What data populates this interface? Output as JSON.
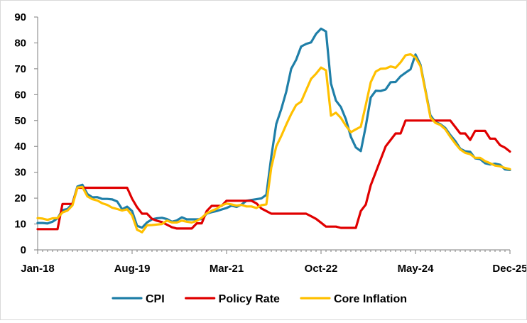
{
  "chart_data": {
    "type": "line",
    "title": "",
    "xlabel": "",
    "ylabel": "",
    "ylim": [
      0,
      90
    ],
    "yticks": [
      0,
      10,
      20,
      30,
      40,
      50,
      60,
      70,
      80,
      90
    ],
    "xlim": [
      "2018-01",
      "2025-12"
    ],
    "xtick_labels": [
      "Jan-18",
      "Aug-19",
      "Mar-21",
      "Oct-22",
      "May-24",
      "Dec-25"
    ],
    "grid": false,
    "legend_position": "bottom",
    "series": [
      {
        "name": "CPI",
        "color": "#1f7fa8",
        "points": [
          [
            "2018-01",
            10.4
          ],
          [
            "2018-02",
            10.4
          ],
          [
            "2018-03",
            10.2
          ],
          [
            "2018-04",
            10.9
          ],
          [
            "2018-05",
            12.2
          ],
          [
            "2018-06",
            15.4
          ],
          [
            "2018-07",
            15.8
          ],
          [
            "2018-08",
            17.9
          ],
          [
            "2018-09",
            24.5
          ],
          [
            "2018-10",
            25.2
          ],
          [
            "2018-11",
            21.6
          ],
          [
            "2018-12",
            20.3
          ],
          [
            "2019-01",
            20.4
          ],
          [
            "2019-02",
            19.7
          ],
          [
            "2019-03",
            19.7
          ],
          [
            "2019-04",
            19.5
          ],
          [
            "2019-05",
            18.7
          ],
          [
            "2019-06",
            15.7
          ],
          [
            "2019-07",
            16.7
          ],
          [
            "2019-08",
            15.0
          ],
          [
            "2019-09",
            9.3
          ],
          [
            "2019-10",
            8.6
          ],
          [
            "2019-11",
            10.6
          ],
          [
            "2019-12",
            11.8
          ],
          [
            "2020-01",
            12.2
          ],
          [
            "2020-02",
            12.4
          ],
          [
            "2020-03",
            11.9
          ],
          [
            "2020-04",
            10.9
          ],
          [
            "2020-05",
            11.4
          ],
          [
            "2020-06",
            12.6
          ],
          [
            "2020-07",
            11.8
          ],
          [
            "2020-08",
            11.8
          ],
          [
            "2020-09",
            11.8
          ],
          [
            "2020-10",
            11.9
          ],
          [
            "2020-11",
            14.0
          ],
          [
            "2020-12",
            14.6
          ],
          [
            "2021-01",
            15.0
          ],
          [
            "2021-02",
            15.6
          ],
          [
            "2021-03",
            16.2
          ],
          [
            "2021-04",
            17.1
          ],
          [
            "2021-05",
            16.6
          ],
          [
            "2021-06",
            17.5
          ],
          [
            "2021-07",
            19.0
          ],
          [
            "2021-08",
            19.3
          ],
          [
            "2021-09",
            19.6
          ],
          [
            "2021-10",
            19.9
          ],
          [
            "2021-11",
            21.3
          ],
          [
            "2021-12",
            36.1
          ],
          [
            "2022-01",
            48.7
          ],
          [
            "2022-02",
            54.4
          ],
          [
            "2022-03",
            61.1
          ],
          [
            "2022-04",
            70.0
          ],
          [
            "2022-05",
            73.5
          ],
          [
            "2022-06",
            78.6
          ],
          [
            "2022-07",
            79.6
          ],
          [
            "2022-08",
            80.2
          ],
          [
            "2022-09",
            83.5
          ],
          [
            "2022-10",
            85.5
          ],
          [
            "2022-11",
            84.4
          ],
          [
            "2022-12",
            64.3
          ],
          [
            "2023-01",
            57.7
          ],
          [
            "2023-02",
            55.2
          ],
          [
            "2023-03",
            50.5
          ],
          [
            "2023-04",
            43.7
          ],
          [
            "2023-05",
            39.6
          ],
          [
            "2023-06",
            38.2
          ],
          [
            "2023-07",
            47.8
          ],
          [
            "2023-08",
            58.9
          ],
          [
            "2023-09",
            61.5
          ],
          [
            "2023-10",
            61.4
          ],
          [
            "2023-11",
            62.0
          ],
          [
            "2023-12",
            64.8
          ],
          [
            "2024-01",
            64.9
          ],
          [
            "2024-02",
            67.1
          ],
          [
            "2024-03",
            68.5
          ],
          [
            "2024-04",
            69.8
          ],
          [
            "2024-05",
            75.5
          ],
          [
            "2024-06",
            71.6
          ],
          [
            "2024-07",
            61.8
          ],
          [
            "2024-08",
            52.0
          ],
          [
            "2024-09",
            49.4
          ],
          [
            "2024-10",
            48.6
          ],
          [
            "2024-11",
            47.1
          ],
          [
            "2024-12",
            44.4
          ],
          [
            "2025-01",
            42.1
          ],
          [
            "2025-02",
            39.1
          ],
          [
            "2025-03",
            38.1
          ],
          [
            "2025-04",
            37.9
          ],
          [
            "2025-05",
            35.4
          ],
          [
            "2025-06",
            35.1
          ],
          [
            "2025-07",
            33.5
          ],
          [
            "2025-08",
            33.0
          ],
          [
            "2025-09",
            33.3
          ],
          [
            "2025-10",
            32.9
          ],
          [
            "2025-11",
            31.1
          ],
          [
            "2025-12",
            30.9
          ]
        ]
      },
      {
        "name": "Policy Rate",
        "color": "#e00000",
        "points": [
          [
            "2018-01",
            8.0
          ],
          [
            "2018-05",
            8.0
          ],
          [
            "2018-06",
            17.75
          ],
          [
            "2018-08",
            17.75
          ],
          [
            "2018-09",
            24.0
          ],
          [
            "2019-07",
            24.0
          ],
          [
            "2019-08",
            19.75
          ],
          [
            "2019-09",
            16.5
          ],
          [
            "2019-10",
            14.0
          ],
          [
            "2019-11",
            14.0
          ],
          [
            "2019-12",
            12.0
          ],
          [
            "2020-01",
            11.25
          ],
          [
            "2020-02",
            10.75
          ],
          [
            "2020-03",
            9.75
          ],
          [
            "2020-04",
            8.75
          ],
          [
            "2020-05",
            8.25
          ],
          [
            "2020-08",
            8.25
          ],
          [
            "2020-09",
            10.25
          ],
          [
            "2020-10",
            10.25
          ],
          [
            "2020-11",
            15.0
          ],
          [
            "2020-12",
            17.0
          ],
          [
            "2021-02",
            17.0
          ],
          [
            "2021-03",
            19.0
          ],
          [
            "2021-08",
            19.0
          ],
          [
            "2021-09",
            18.0
          ],
          [
            "2021-10",
            16.0
          ],
          [
            "2021-11",
            15.0
          ],
          [
            "2021-12",
            14.0
          ],
          [
            "2022-07",
            14.0
          ],
          [
            "2022-08",
            13.0
          ],
          [
            "2022-09",
            12.0
          ],
          [
            "2022-10",
            10.5
          ],
          [
            "2022-11",
            9.0
          ],
          [
            "2022-12",
            9.0
          ],
          [
            "2023-01",
            9.0
          ],
          [
            "2023-02",
            8.5
          ],
          [
            "2023-05",
            8.5
          ],
          [
            "2023-06",
            15.0
          ],
          [
            "2023-07",
            17.5
          ],
          [
            "2023-08",
            25.0
          ],
          [
            "2023-09",
            30.0
          ],
          [
            "2023-10",
            35.0
          ],
          [
            "2023-11",
            40.0
          ],
          [
            "2023-12",
            42.5
          ],
          [
            "2024-01",
            45.0
          ],
          [
            "2024-02",
            45.0
          ],
          [
            "2024-03",
            50.0
          ],
          [
            "2024-12",
            50.0
          ],
          [
            "2025-01",
            47.5
          ],
          [
            "2025-02",
            45.0
          ],
          [
            "2025-03",
            45.0
          ],
          [
            "2025-04",
            42.5
          ],
          [
            "2025-05",
            46.0
          ],
          [
            "2025-07",
            46.0
          ],
          [
            "2025-08",
            43.0
          ],
          [
            "2025-09",
            43.0
          ],
          [
            "2025-10",
            40.5
          ],
          [
            "2025-11",
            39.5
          ],
          [
            "2025-12",
            38.0
          ]
        ]
      },
      {
        "name": "Core Inflation",
        "color": "#ffc000",
        "points": [
          [
            "2018-01",
            12.3
          ],
          [
            "2018-02",
            12.1
          ],
          [
            "2018-03",
            11.6
          ],
          [
            "2018-04",
            12.2
          ],
          [
            "2018-05",
            12.3
          ],
          [
            "2018-06",
            14.5
          ],
          [
            "2018-07",
            15.2
          ],
          [
            "2018-08",
            17.2
          ],
          [
            "2018-09",
            24.1
          ],
          [
            "2018-10",
            24.3
          ],
          [
            "2018-11",
            20.7
          ],
          [
            "2018-12",
            19.6
          ],
          [
            "2019-01",
            19.1
          ],
          [
            "2019-02",
            18.0
          ],
          [
            "2019-03",
            17.4
          ],
          [
            "2019-04",
            16.3
          ],
          [
            "2019-05",
            15.8
          ],
          [
            "2019-06",
            15.2
          ],
          [
            "2019-07",
            15.7
          ],
          [
            "2019-08",
            13.3
          ],
          [
            "2019-09",
            7.8
          ],
          [
            "2019-10",
            6.8
          ],
          [
            "2019-11",
            9.5
          ],
          [
            "2019-12",
            9.6
          ],
          [
            "2020-01",
            9.8
          ],
          [
            "2020-02",
            10.0
          ],
          [
            "2020-03",
            11.3
          ],
          [
            "2020-04",
            10.6
          ],
          [
            "2020-05",
            10.6
          ],
          [
            "2020-06",
            11.3
          ],
          [
            "2020-07",
            10.9
          ],
          [
            "2020-08",
            10.6
          ],
          [
            "2020-09",
            11.2
          ],
          [
            "2020-10",
            12.4
          ],
          [
            "2020-11",
            14.1
          ],
          [
            "2020-12",
            15.1
          ],
          [
            "2021-01",
            15.9
          ],
          [
            "2021-02",
            17.2
          ],
          [
            "2021-03",
            17.9
          ],
          [
            "2021-04",
            17.6
          ],
          [
            "2021-05",
            17.1
          ],
          [
            "2021-06",
            17.4
          ],
          [
            "2021-07",
            16.8
          ],
          [
            "2021-08",
            16.8
          ],
          [
            "2021-09",
            16.2
          ],
          [
            "2021-10",
            17.3
          ],
          [
            "2021-11",
            17.6
          ],
          [
            "2021-12",
            31.9
          ],
          [
            "2022-01",
            40.0
          ],
          [
            "2022-02",
            44.0
          ],
          [
            "2022-03",
            48.4
          ],
          [
            "2022-04",
            52.5
          ],
          [
            "2022-05",
            56.0
          ],
          [
            "2022-06",
            57.3
          ],
          [
            "2022-07",
            61.7
          ],
          [
            "2022-08",
            66.1
          ],
          [
            "2022-09",
            68.1
          ],
          [
            "2022-10",
            70.5
          ],
          [
            "2022-11",
            69.4
          ],
          [
            "2022-12",
            51.9
          ],
          [
            "2023-01",
            53.0
          ],
          [
            "2023-02",
            51.0
          ],
          [
            "2023-03",
            48.0
          ],
          [
            "2023-04",
            45.5
          ],
          [
            "2023-05",
            46.6
          ],
          [
            "2023-06",
            47.6
          ],
          [
            "2023-07",
            56.0
          ],
          [
            "2023-08",
            64.8
          ],
          [
            "2023-09",
            68.9
          ],
          [
            "2023-10",
            70.0
          ],
          [
            "2023-11",
            70.1
          ],
          [
            "2023-12",
            70.9
          ],
          [
            "2024-01",
            70.4
          ],
          [
            "2024-02",
            72.5
          ],
          [
            "2024-03",
            75.2
          ],
          [
            "2024-04",
            75.6
          ],
          [
            "2024-05",
            74.4
          ],
          [
            "2024-06",
            71.0
          ],
          [
            "2024-07",
            61.3
          ],
          [
            "2024-08",
            51.2
          ],
          [
            "2024-09",
            49.1
          ],
          [
            "2024-10",
            48.3
          ],
          [
            "2024-11",
            46.6
          ],
          [
            "2024-12",
            43.7
          ],
          [
            "2025-01",
            41.1
          ],
          [
            "2025-02",
            38.8
          ],
          [
            "2025-03",
            37.5
          ],
          [
            "2025-04",
            37.0
          ],
          [
            "2025-05",
            35.6
          ],
          [
            "2025-06",
            35.6
          ],
          [
            "2025-07",
            34.3
          ],
          [
            "2025-08",
            33.5
          ],
          [
            "2025-09",
            32.6
          ],
          [
            "2025-10",
            32.3
          ],
          [
            "2025-11",
            31.7
          ],
          [
            "2025-12",
            31.2
          ]
        ]
      }
    ]
  }
}
